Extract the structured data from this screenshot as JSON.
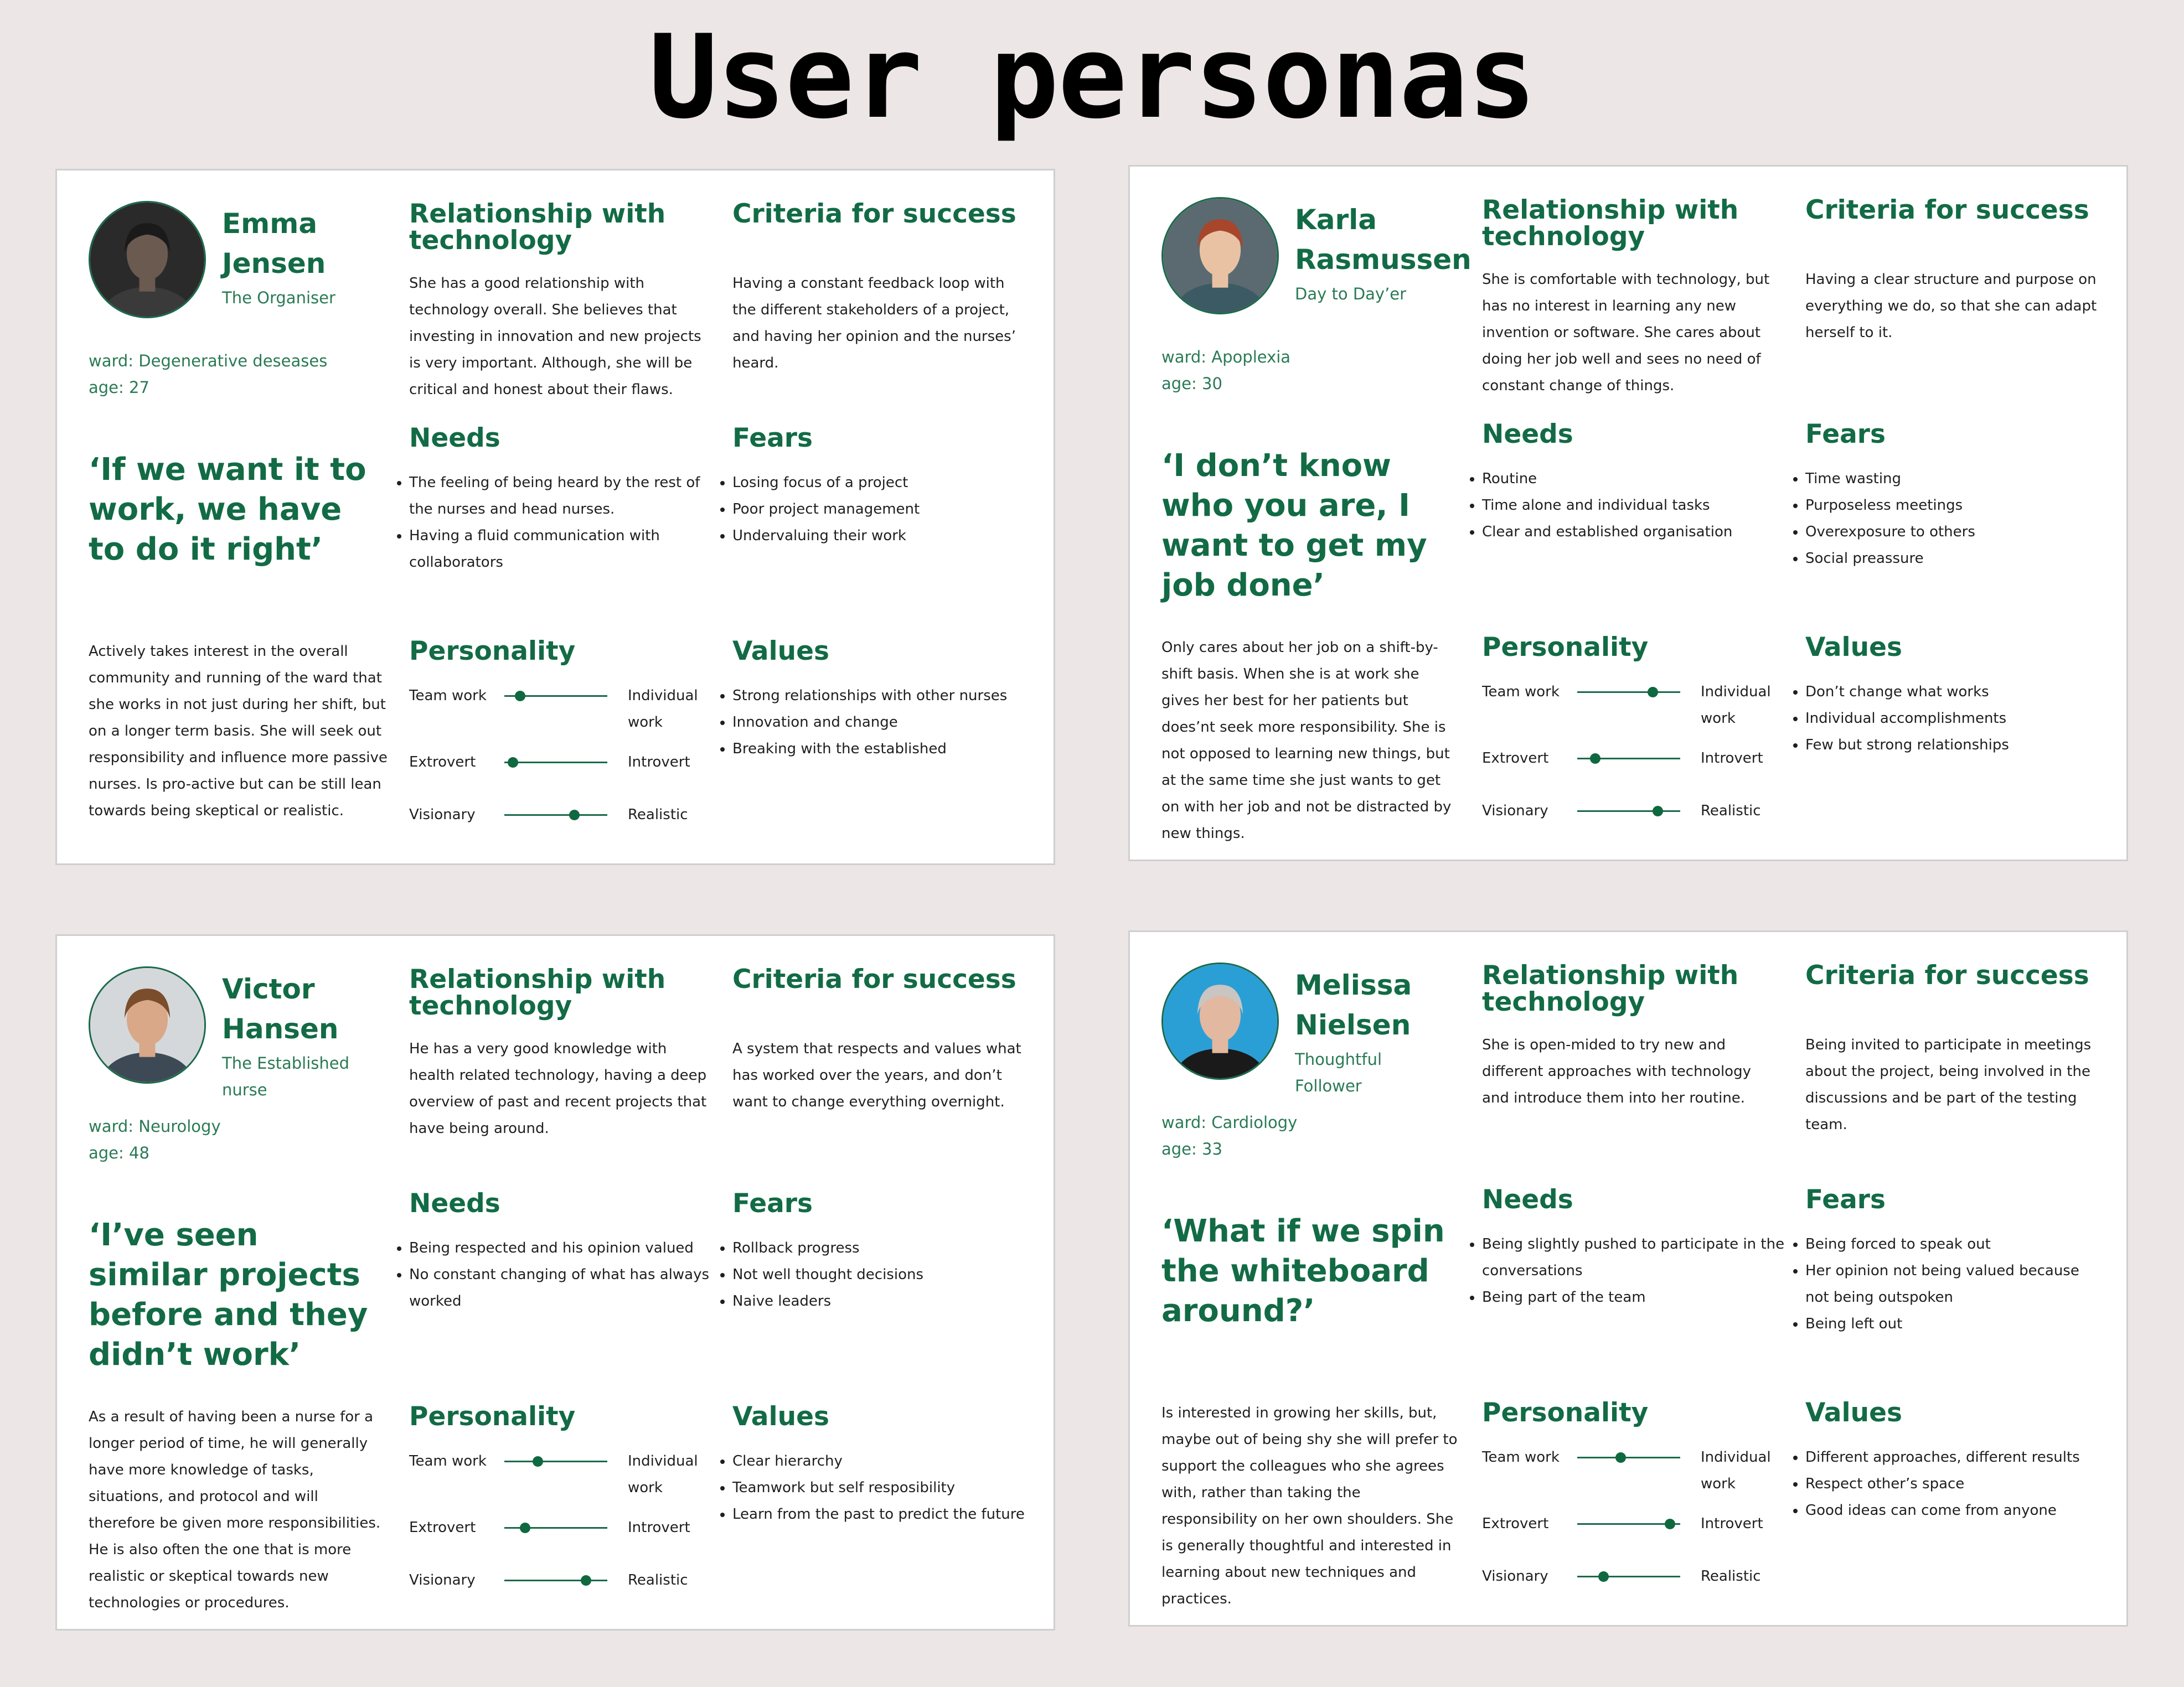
{
  "title": "User personas",
  "section_titles": {
    "relationship": "Relationship with technology",
    "criteria": "Criteria for success",
    "needs": "Needs",
    "fears": "Fears",
    "personality": "Personality",
    "values": "Values"
  },
  "personality_labels": {
    "left": [
      "Team work",
      "Extrovert",
      "Visionary"
    ],
    "right": [
      "Individual work",
      "Introvert",
      "Realistic"
    ]
  },
  "accent_color": "#126b45",
  "personas": [
    {
      "first_name": "Emma",
      "last_name": "Jensen",
      "role": "The Organiser",
      "ward": "ward: Degenerative deseases",
      "age": "age: 27",
      "quote": "‘If we want it to work, we have to do it right’",
      "bio": "Actively takes interest in the overall community and running of the ward that she works in not just during her shift, but on a longer term basis. She will seek out responsibility and influence more passive nurses. Is pro-active but can be still lean towards being skeptical or realistic.",
      "relationship": "She has a good relationship with technology overall. She believes that investing in innovation and new projects is very important. Although, she will be critical and honest about their flaws.",
      "criteria": "Having a constant feedback loop with the different stakeholders of a project, and having her opinion and the nurses’ heard.",
      "needs": [
        "The feeling of being heard by the rest of the nurses and head nurses.",
        "Having a fluid communication with collaborators"
      ],
      "fears": [
        "Losing focus of a project",
        "Poor project management",
        "Undervaluing their work"
      ],
      "values": [
        "Strong relationships with other nurses",
        "Innovation and change",
        "Breaking with the established"
      ],
      "personality": [
        0.15,
        0.08,
        0.68
      ]
    },
    {
      "first_name": "Karla",
      "last_name": "Rasmussen",
      "role": "Day to Day’er",
      "ward": "ward: Apoplexia",
      "age": "age: 30",
      "quote": "‘I don’t know who you are, I want to get my job done’",
      "bio": "Only cares about her job on a shift-by-shift basis. When she is at work she gives her best for her patients but does’nt seek more responsibility. She is not opposed to learning new things, but at the same time she just wants to get on with her job and not be distracted by new things.",
      "relationship": "She is comfortable with technology, but has no interest in learning any new invention or software. She cares about doing her job well and sees no need of constant change of things.",
      "criteria": "Having a clear structure and purpose on everything we do, so that she can adapt herself to it.",
      "needs": [
        "Routine",
        "Time alone and individual tasks",
        "Clear and established organisation"
      ],
      "fears": [
        "Time wasting",
        "Purposeless meetings",
        "Overexposure to others",
        "Social preassure"
      ],
      "values": [
        "Don’t change what works",
        "Individual accomplishments",
        "Few but strong relationships"
      ],
      "personality": [
        0.73,
        0.17,
        0.78
      ]
    },
    {
      "first_name": "Victor",
      "last_name": "Hansen",
      "role": "The Established nurse",
      "ward": "ward: Neurology",
      "age": "age: 48",
      "quote": "‘I’ve seen similar projects before and they didn’t work’",
      "bio": "As a result of having been a nurse for a longer period of time, he will generally have more knowledge of tasks, situations, and protocol and will therefore be given more responsibilities. He is also often the one that is more realistic or skeptical towards new technologies or procedures.",
      "relationship": "He has a very good knowledge with health related technology, having a deep overview of past and recent projects that have being around.",
      "criteria": "A system that respects and values what has worked over the years, and don’t want to change everything overnight.",
      "needs": [
        "Being respected and his opinion valued",
        "No constant changing of what has always worked"
      ],
      "fears": [
        "Rollback progress",
        "Not well thought decisions",
        "Naive leaders"
      ],
      "values": [
        "Clear hierarchy",
        "Teamwork but self resposibility",
        "Learn from the past to predict the future"
      ],
      "personality": [
        0.32,
        0.2,
        0.79
      ]
    },
    {
      "first_name": "Melissa",
      "last_name": "Nielsen",
      "role": "Thoughtful Follower",
      "ward": "ward: Cardiology",
      "age": "age: 33",
      "quote": "‘What if we spin the whiteboard around?’",
      "bio": "Is interested in growing her skills, but, maybe out of being shy she will prefer to support the colleagues who she agrees with, rather than taking the responsibility on her own shoulders. She is generally thoughtful and interested in learning about new techniques and practices.",
      "relationship": "She is open-mided to try new and different approaches with technology and introduce them into her routine.",
      "criteria": "Being invited to participate in meetings about the project, being involved in the discussions and be part of the testing team.",
      "needs": [
        "Being slightly pushed to participate in the conversations",
        "Being part of the team"
      ],
      "fears": [
        "Being forced to speak out",
        "Her opinion not being valued because not being outspoken",
        "Being left out"
      ],
      "values": [
        "Different approaches, different results",
        "Respect other’s space",
        "Good ideas can come from anyone"
      ],
      "personality": [
        0.42,
        0.9,
        0.25
      ]
    }
  ]
}
